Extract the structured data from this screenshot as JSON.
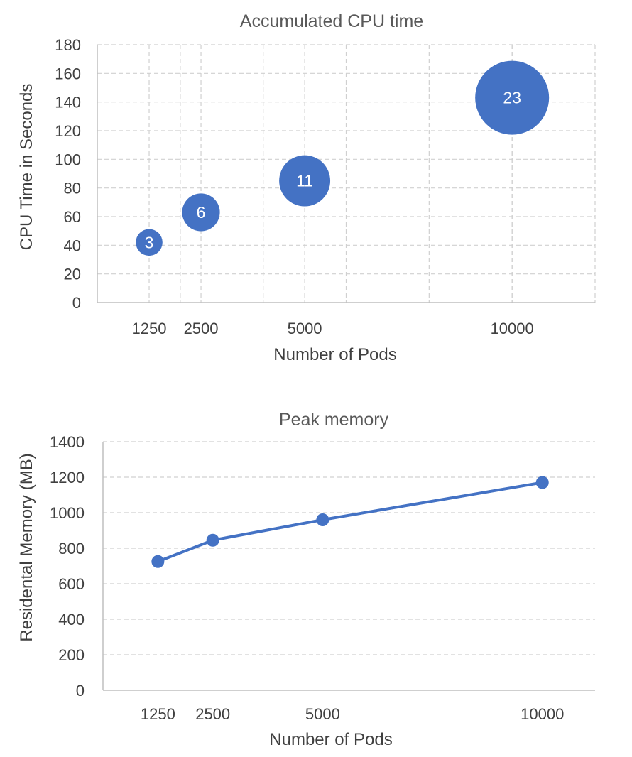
{
  "chart_data": [
    {
      "type": "bubble",
      "title": "Accumulated CPU time",
      "xlabel": "Number of Pods",
      "ylabel": "CPU Time in Seconds",
      "xlim": [
        0,
        12000
      ],
      "x_gridlines": [
        2000,
        4000,
        6000,
        8000,
        10000,
        12000
      ],
      "xticks": [
        1250,
        2500,
        5000,
        10000
      ],
      "ylim": [
        0,
        180
      ],
      "yticks": [
        0,
        20,
        40,
        60,
        80,
        100,
        120,
        140,
        160,
        180
      ],
      "grid": true,
      "color": "#4472c4",
      "points": [
        {
          "x": 1250,
          "y": 42,
          "size": 3
        },
        {
          "x": 2500,
          "y": 63,
          "size": 6
        },
        {
          "x": 5000,
          "y": 85,
          "size": 11
        },
        {
          "x": 10000,
          "y": 143,
          "size": 23
        }
      ]
    },
    {
      "type": "line",
      "title": "Peak memory",
      "xlabel": "Number of Pods",
      "ylabel": "Residental Memory (MB)",
      "xlim": [
        0,
        11200
      ],
      "xticks": [
        1250,
        2500,
        5000,
        10000
      ],
      "ylim": [
        0,
        1400
      ],
      "yticks": [
        0,
        200,
        400,
        600,
        800,
        1000,
        1200,
        1400
      ],
      "grid": true,
      "color": "#4472c4",
      "series": [
        {
          "x": [
            1250,
            2500,
            5000,
            10000
          ],
          "values": [
            725,
            845,
            960,
            1170
          ]
        }
      ]
    }
  ]
}
